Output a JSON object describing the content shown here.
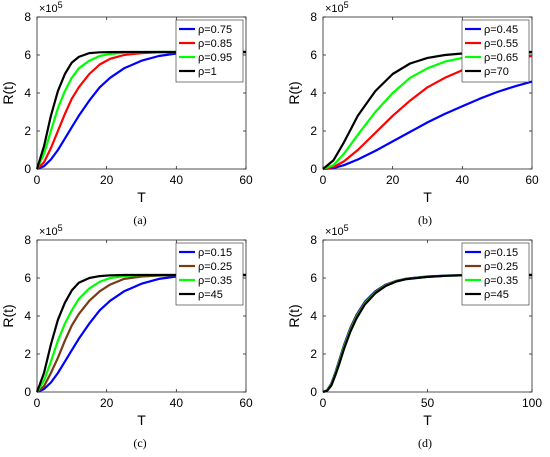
{
  "figure": {
    "captions": [
      "(a)",
      "(b)",
      "(c)",
      "(d)"
    ]
  },
  "chart_data": [
    {
      "id": "a",
      "type": "line",
      "xlabel": "T",
      "ylabel": "R(t)",
      "y_multiplier": "×10",
      "y_multiplier_exp": "5",
      "xlim": [
        0,
        60
      ],
      "ylim": [
        0,
        8
      ],
      "xticks": [
        0,
        20,
        40,
        60
      ],
      "yticks": [
        0,
        2,
        4,
        6,
        8
      ],
      "legend_position": "top-right",
      "series": [
        {
          "name": "ρ=0.75",
          "color": "#0000ff",
          "x": [
            0,
            2,
            4,
            6,
            8,
            10,
            12,
            15,
            18,
            21,
            25,
            30,
            35,
            40,
            45,
            50,
            55,
            60
          ],
          "y": [
            0,
            0.15,
            0.5,
            1.0,
            1.6,
            2.2,
            2.8,
            3.6,
            4.3,
            4.8,
            5.3,
            5.7,
            5.95,
            6.08,
            6.13,
            6.15,
            6.16,
            6.16
          ]
        },
        {
          "name": "ρ=0.85",
          "color": "#ff0000",
          "x": [
            0,
            2,
            4,
            6,
            8,
            10,
            12,
            15,
            18,
            21,
            25,
            30,
            35,
            40,
            45,
            50,
            55,
            60
          ],
          "y": [
            0,
            0.35,
            1.1,
            2.0,
            2.9,
            3.7,
            4.3,
            5.0,
            5.5,
            5.8,
            6.0,
            6.1,
            6.14,
            6.15,
            6.16,
            6.16,
            6.16,
            6.16
          ]
        },
        {
          "name": "ρ=0.95",
          "color": "#00ff00",
          "x": [
            0,
            2,
            4,
            6,
            8,
            10,
            12,
            15,
            18,
            21,
            25,
            30,
            35,
            40,
            45,
            50,
            55,
            60
          ],
          "y": [
            0,
            0.8,
            2.0,
            3.2,
            4.1,
            4.8,
            5.3,
            5.7,
            5.95,
            6.05,
            6.12,
            6.15,
            6.16,
            6.16,
            6.16,
            6.16,
            6.16,
            6.16
          ]
        },
        {
          "name": "ρ=1",
          "color": "#000000",
          "x": [
            0,
            2,
            4,
            6,
            8,
            10,
            12,
            15,
            18,
            21,
            25,
            30,
            35,
            40,
            45,
            50,
            55,
            60
          ],
          "y": [
            0,
            1.2,
            2.8,
            4.1,
            5.0,
            5.6,
            5.9,
            6.1,
            6.14,
            6.15,
            6.16,
            6.16,
            6.16,
            6.16,
            6.16,
            6.16,
            6.16,
            6.16
          ]
        }
      ]
    },
    {
      "id": "b",
      "type": "line",
      "xlabel": "T",
      "ylabel": "R(t)",
      "y_multiplier": "×10",
      "y_multiplier_exp": "5",
      "xlim": [
        0,
        60
      ],
      "ylim": [
        0,
        8
      ],
      "xticks": [
        0,
        20,
        40,
        60
      ],
      "yticks": [
        0,
        2,
        4,
        6,
        8
      ],
      "legend_position": "top-right",
      "series": [
        {
          "name": "ρ=0.45",
          "color": "#0000ff",
          "x": [
            0,
            3,
            6,
            10,
            15,
            20,
            25,
            30,
            35,
            40,
            45,
            50,
            55,
            60
          ],
          "y": [
            0,
            0.05,
            0.2,
            0.5,
            0.95,
            1.45,
            1.95,
            2.45,
            2.9,
            3.3,
            3.7,
            4.05,
            4.35,
            4.6
          ]
        },
        {
          "name": "ρ=0.55",
          "color": "#ff0000",
          "x": [
            0,
            3,
            6,
            10,
            15,
            20,
            25,
            30,
            35,
            40,
            45,
            50,
            55,
            60
          ],
          "y": [
            0,
            0.1,
            0.4,
            1.0,
            1.9,
            2.8,
            3.6,
            4.3,
            4.8,
            5.2,
            5.5,
            5.7,
            5.85,
            5.95
          ]
        },
        {
          "name": "ρ=0.65",
          "color": "#00ff00",
          "x": [
            0,
            3,
            6,
            10,
            15,
            20,
            25,
            30,
            35,
            40,
            45,
            50,
            55,
            60
          ],
          "y": [
            0,
            0.2,
            0.8,
            1.8,
            3.0,
            4.0,
            4.8,
            5.3,
            5.65,
            5.85,
            5.97,
            6.05,
            6.1,
            6.12
          ]
        },
        {
          "name": "ρ=70",
          "color": "#000000",
          "x": [
            0,
            3,
            6,
            10,
            15,
            20,
            25,
            30,
            35,
            40,
            45,
            50,
            55,
            60
          ],
          "y": [
            0,
            0.45,
            1.4,
            2.8,
            4.1,
            5.0,
            5.55,
            5.85,
            6.0,
            6.08,
            6.12,
            6.14,
            6.15,
            6.16
          ]
        }
      ]
    },
    {
      "id": "c",
      "type": "line",
      "xlabel": "T",
      "ylabel": "R(t)",
      "y_multiplier": "×10",
      "y_multiplier_exp": "5",
      "xlim": [
        0,
        60
      ],
      "ylim": [
        0,
        8
      ],
      "xticks": [
        0,
        20,
        40,
        60
      ],
      "yticks": [
        0,
        2,
        4,
        6,
        8
      ],
      "legend_position": "top-right",
      "series": [
        {
          "name": "ρ=0.15",
          "color": "#0000ff",
          "x": [
            0,
            2,
            4,
            6,
            8,
            10,
            12,
            15,
            18,
            21,
            25,
            30,
            35,
            40,
            45,
            50,
            55,
            60
          ],
          "y": [
            0,
            0.15,
            0.5,
            1.0,
            1.6,
            2.2,
            2.8,
            3.6,
            4.3,
            4.8,
            5.3,
            5.7,
            5.95,
            6.08,
            6.13,
            6.15,
            6.16,
            6.16
          ]
        },
        {
          "name": "ρ=0.25",
          "color": "#7a3b14",
          "x": [
            0,
            2,
            4,
            6,
            8,
            10,
            12,
            15,
            18,
            21,
            25,
            30,
            35,
            40,
            45,
            50,
            55,
            60
          ],
          "y": [
            0,
            0.3,
            1.0,
            1.8,
            2.7,
            3.5,
            4.1,
            4.8,
            5.3,
            5.65,
            5.95,
            6.08,
            6.13,
            6.15,
            6.16,
            6.16,
            6.16,
            6.16
          ]
        },
        {
          "name": "ρ=0.35",
          "color": "#00ff00",
          "x": [
            0,
            2,
            4,
            6,
            8,
            10,
            12,
            15,
            18,
            21,
            25,
            30,
            35,
            40,
            45,
            50,
            55,
            60
          ],
          "y": [
            0,
            0.6,
            1.6,
            2.7,
            3.6,
            4.3,
            4.9,
            5.45,
            5.8,
            6.0,
            6.1,
            6.15,
            6.16,
            6.16,
            6.16,
            6.16,
            6.16,
            6.16
          ]
        },
        {
          "name": "ρ=45",
          "color": "#000000",
          "x": [
            0,
            2,
            4,
            6,
            8,
            10,
            12,
            15,
            18,
            21,
            25,
            30,
            35,
            40,
            45,
            50,
            55,
            60
          ],
          "y": [
            0,
            1.0,
            2.5,
            3.8,
            4.7,
            5.35,
            5.75,
            6.0,
            6.1,
            6.14,
            6.16,
            6.16,
            6.16,
            6.16,
            6.16,
            6.16,
            6.16,
            6.16
          ]
        }
      ]
    },
    {
      "id": "d",
      "type": "line",
      "xlabel": "T",
      "ylabel": "R(t)",
      "y_multiplier": "×10",
      "y_multiplier_exp": "5",
      "xlim": [
        0,
        100
      ],
      "ylim": [
        0,
        8
      ],
      "xticks": [
        0,
        50,
        100
      ],
      "yticks": [
        0,
        2,
        4,
        6,
        8
      ],
      "legend_position": "top-right",
      "series": [
        {
          "name": "ρ=0.15",
          "color": "#0000ff",
          "x": [
            0,
            2,
            4,
            6,
            8,
            10,
            13,
            16,
            20,
            25,
            30,
            35,
            40,
            50,
            60,
            70,
            80,
            90,
            100
          ],
          "y": [
            0,
            0.1,
            0.45,
            1.05,
            1.75,
            2.45,
            3.35,
            4.05,
            4.75,
            5.3,
            5.65,
            5.85,
            5.97,
            6.08,
            6.13,
            6.15,
            6.16,
            6.16,
            6.16
          ]
        },
        {
          "name": "ρ=0.25",
          "color": "#7a3b14",
          "x": [
            0,
            2,
            4,
            6,
            8,
            10,
            13,
            16,
            20,
            25,
            30,
            35,
            40,
            50,
            60,
            70,
            80,
            90,
            100
          ],
          "y": [
            0,
            0.09,
            0.42,
            1.0,
            1.7,
            2.4,
            3.3,
            4.0,
            4.7,
            5.27,
            5.63,
            5.84,
            5.96,
            6.07,
            6.12,
            6.15,
            6.16,
            6.16,
            6.16
          ]
        },
        {
          "name": "ρ=0.35",
          "color": "#00ff00",
          "x": [
            0,
            2,
            4,
            6,
            8,
            10,
            13,
            16,
            20,
            25,
            30,
            35,
            40,
            50,
            60,
            70,
            80,
            90,
            100
          ],
          "y": [
            0,
            0.08,
            0.38,
            0.95,
            1.62,
            2.32,
            3.22,
            3.93,
            4.64,
            5.22,
            5.6,
            5.82,
            5.95,
            6.06,
            6.12,
            6.15,
            6.16,
            6.16,
            6.16
          ]
        },
        {
          "name": "ρ=45",
          "color": "#000000",
          "x": [
            0,
            2,
            4,
            6,
            8,
            10,
            13,
            16,
            20,
            25,
            30,
            35,
            40,
            50,
            60,
            70,
            80,
            90,
            100
          ],
          "y": [
            0,
            0.07,
            0.35,
            0.9,
            1.55,
            2.25,
            3.15,
            3.87,
            4.6,
            5.2,
            5.58,
            5.81,
            5.94,
            6.06,
            6.12,
            6.15,
            6.16,
            6.16,
            6.16
          ]
        }
      ]
    }
  ]
}
